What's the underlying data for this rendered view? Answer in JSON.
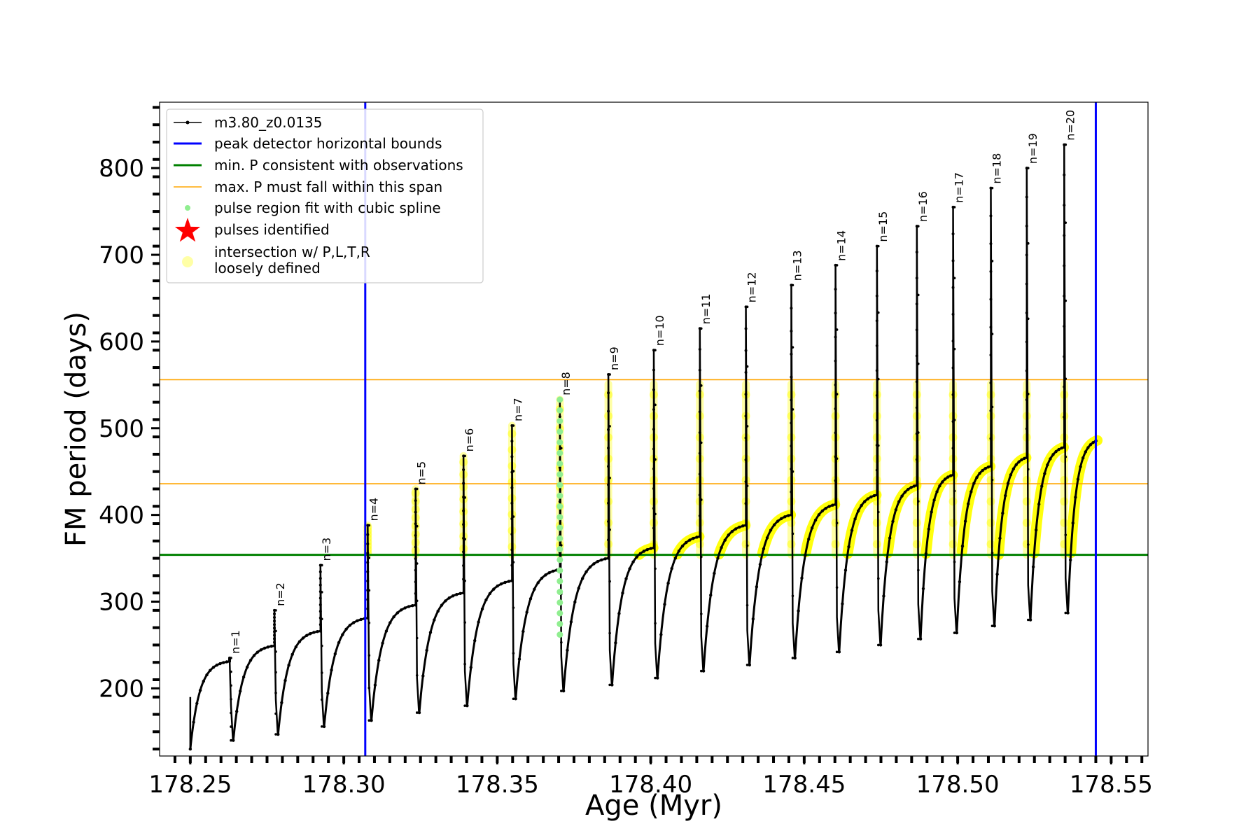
{
  "chart_data": {
    "type": "line",
    "title": "",
    "xlabel": "Age (Myr)",
    "ylabel": "FM period (days)",
    "xlim": [
      178.24,
      178.562
    ],
    "ylim": [
      122,
      876
    ],
    "xticks": [
      "178.25",
      "178.30",
      "178.35",
      "178.40",
      "178.45",
      "178.50",
      "178.55"
    ],
    "yticks": [
      "200",
      "300",
      "400",
      "500",
      "600",
      "700",
      "800"
    ],
    "grid": false,
    "legend_position": "top-left",
    "colors": {
      "track": "#000000",
      "bounds": "#0000ff",
      "min_period": "#008000",
      "max_span": "#ffa500",
      "spline": "#90ee90",
      "pulses": "#ff0000",
      "intersection": "#ffff00"
    },
    "legend": [
      "m3.80_z0.0135",
      "peak detector horizontal bounds",
      "min. P consistent with observations",
      "max. P must fall within this span",
      "pulse region fit with cubic spline",
      "pulses identified",
      "intersection w/ P,L,T,R",
      "loosely defined"
    ],
    "vertical_bounds_age": [
      178.307,
      178.545
    ],
    "min_period_line": 354,
    "max_period_span": [
      436,
      556
    ],
    "track_start": {
      "age": 178.25,
      "period": 190
    },
    "pulses": [
      {
        "label": "n=1",
        "age": 178.2628,
        "peak": 235,
        "min": 140,
        "plateau": 231
      },
      {
        "label": "n=2",
        "age": 178.2774,
        "peak": 290,
        "min": 147,
        "plateau": 249
      },
      {
        "label": "n=3",
        "age": 178.2924,
        "peak": 342,
        "min": 156,
        "plateau": 266
      },
      {
        "label": "n=4",
        "age": 178.3078,
        "peak": 388,
        "min": 163,
        "plateau": 281
      },
      {
        "label": "n=5",
        "age": 178.3234,
        "peak": 430,
        "min": 172,
        "plateau": 296
      },
      {
        "label": "n=6",
        "age": 178.339,
        "peak": 468,
        "min": 180,
        "plateau": 310
      },
      {
        "label": "n=7",
        "age": 178.3548,
        "peak": 503,
        "min": 188,
        "plateau": 324
      },
      {
        "label": "n=8",
        "age": 178.3704,
        "peak": 533,
        "min": 197,
        "plateau": 337
      },
      {
        "label": "n=9",
        "age": 178.3862,
        "peak": 562,
        "min": 204,
        "plateau": 350
      },
      {
        "label": "n=10",
        "age": 178.401,
        "peak": 590,
        "min": 212,
        "plateau": 362
      },
      {
        "label": "n=11",
        "age": 178.416,
        "peak": 615,
        "min": 220,
        "plateau": 375
      },
      {
        "label": "n=12",
        "age": 178.431,
        "peak": 640,
        "min": 227,
        "plateau": 388
      },
      {
        "label": "n=13",
        "age": 178.4458,
        "peak": 665,
        "min": 235,
        "plateau": 400
      },
      {
        "label": "n=14",
        "age": 178.4602,
        "peak": 688,
        "min": 242,
        "plateau": 412
      },
      {
        "label": "n=15",
        "age": 178.4737,
        "peak": 710,
        "min": 250,
        "plateau": 423
      },
      {
        "label": "n=16",
        "age": 178.4867,
        "peak": 733,
        "min": 257,
        "plateau": 434
      },
      {
        "label": "n=17",
        "age": 178.4985,
        "peak": 755,
        "min": 264,
        "plateau": 446
      },
      {
        "label": "n=18",
        "age": 178.5108,
        "peak": 777,
        "min": 272,
        "plateau": 456
      },
      {
        "label": "n=19",
        "age": 178.5225,
        "peak": 800,
        "min": 279,
        "plateau": 466
      },
      {
        "label": "n=20",
        "age": 178.5347,
        "peak": 827,
        "min": 287,
        "plateau": 478
      }
    ],
    "track_end": {
      "age": 178.5455,
      "period": 486
    }
  }
}
